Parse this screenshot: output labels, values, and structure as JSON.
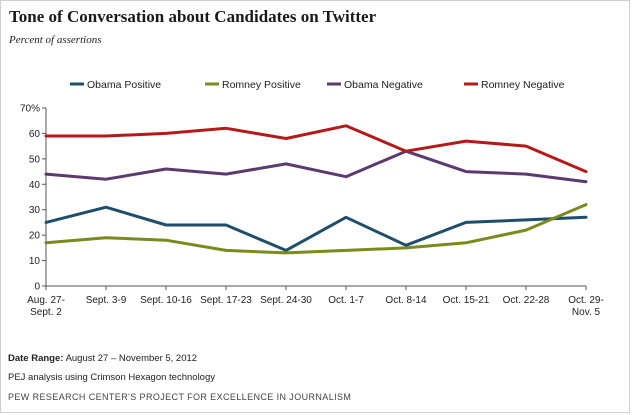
{
  "title": "Tone of Conversation about Candidates on Twitter",
  "subtitle": "Percent of assertions",
  "footnotes": {
    "date_range_label": "Date Range:",
    "date_range_value": "August 27 – November 5, 2012",
    "method": "PEJ analysis using Crimson Hexagon technology",
    "source": "PEW RESEARCH CENTER'S PROJECT FOR EXCELLENCE IN JOURNALISM"
  },
  "chart_data": {
    "type": "line",
    "title": "Tone of Conversation about Candidates on Twitter",
    "subtitle": "Percent of assertions",
    "categories": [
      [
        "Aug. 27-",
        "Sept. 2"
      ],
      [
        "Sept. 3-9"
      ],
      [
        "Sept. 10-16"
      ],
      [
        "Sept. 17-23"
      ],
      [
        "Sept. 24-30"
      ],
      [
        "Oct. 1-7"
      ],
      [
        "Oct. 8-14"
      ],
      [
        "Oct. 15-21"
      ],
      [
        "Oct. 22-28"
      ],
      [
        "Oct. 29-",
        "Nov. 5"
      ]
    ],
    "ylim": [
      0,
      70
    ],
    "yticks": [
      "0",
      "10",
      "20",
      "30",
      "40",
      "50",
      "60",
      "70%"
    ],
    "grid": false,
    "legend_position": "top",
    "series": [
      {
        "name": "Obama Positive",
        "color": "#1f4e6b",
        "values": [
          25,
          31,
          24,
          24,
          14,
          27,
          16,
          25,
          26,
          27
        ]
      },
      {
        "name": "Romney Positive",
        "color": "#7a8a1e",
        "values": [
          17,
          19,
          18,
          14,
          13,
          14,
          15,
          17,
          22,
          32
        ]
      },
      {
        "name": "Obama Negative",
        "color": "#5b3a6e",
        "values": [
          44,
          42,
          46,
          44,
          48,
          43,
          53,
          45,
          44,
          41
        ]
      },
      {
        "name": "Romney Negative",
        "color": "#b31b1b",
        "values": [
          59,
          59,
          60,
          62,
          58,
          63,
          53,
          57,
          55,
          45
        ]
      }
    ]
  }
}
